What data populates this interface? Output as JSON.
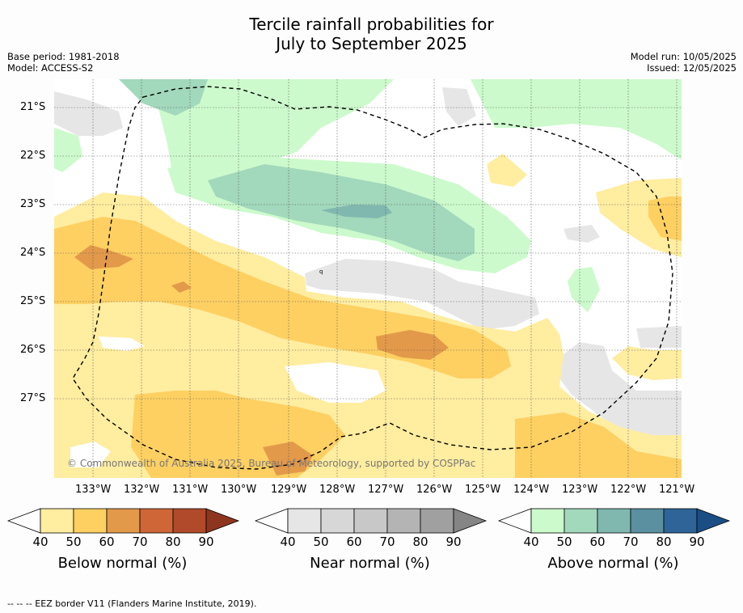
{
  "title_line1": "Tercile rainfall probabilities for",
  "title_line2": "July to September 2025",
  "meta_left": {
    "base_period": "Base period: 1981-2018",
    "model": "Model: ACCESS-S2"
  },
  "meta_right": {
    "model_run": "Model run: 10/05/2025",
    "issued": "Issued: 12/05/2025"
  },
  "map": {
    "lat_labels": [
      "21°S",
      "22°S",
      "23°S",
      "24°S",
      "25°S",
      "26°S",
      "27°S"
    ],
    "lon_labels": [
      "133°W",
      "132°W",
      "131°W",
      "130°W",
      "129°W",
      "128°W",
      "127°W",
      "126°W",
      "125°W",
      "124°W",
      "123°W",
      "122°W",
      "121°W"
    ],
    "copyright": "© Commonwealth of Australia 2025, Bureau of Meteorology, supported by COSPPac",
    "isolated_label": "q"
  },
  "colorbars": [
    {
      "label": "Below normal (%)",
      "ticks": [
        "40",
        "50",
        "60",
        "70",
        "80",
        "90"
      ],
      "colors": [
        "#ffeda0",
        "#fed062",
        "#e3994a",
        "#ce6637",
        "#b04a2a",
        "#8e3520"
      ]
    },
    {
      "label": "Near normal (%)",
      "ticks": [
        "40",
        "50",
        "60",
        "70",
        "80",
        "90"
      ],
      "colors": [
        "#e6e6e6",
        "#d7d7d7",
        "#c8c8c8",
        "#b4b4b4",
        "#a0a0a0",
        "#858585"
      ]
    },
    {
      "label": "Above normal (%)",
      "ticks": [
        "40",
        "50",
        "60",
        "70",
        "80",
        "90"
      ],
      "colors": [
        "#ccfacc",
        "#a2d8bb",
        "#80b8b0",
        "#5a90a0",
        "#2e6498",
        "#1a4e85"
      ]
    }
  ],
  "footnote": "--  --  -- EEZ border V11 (Flanders Marine Institute, 2019)."
}
